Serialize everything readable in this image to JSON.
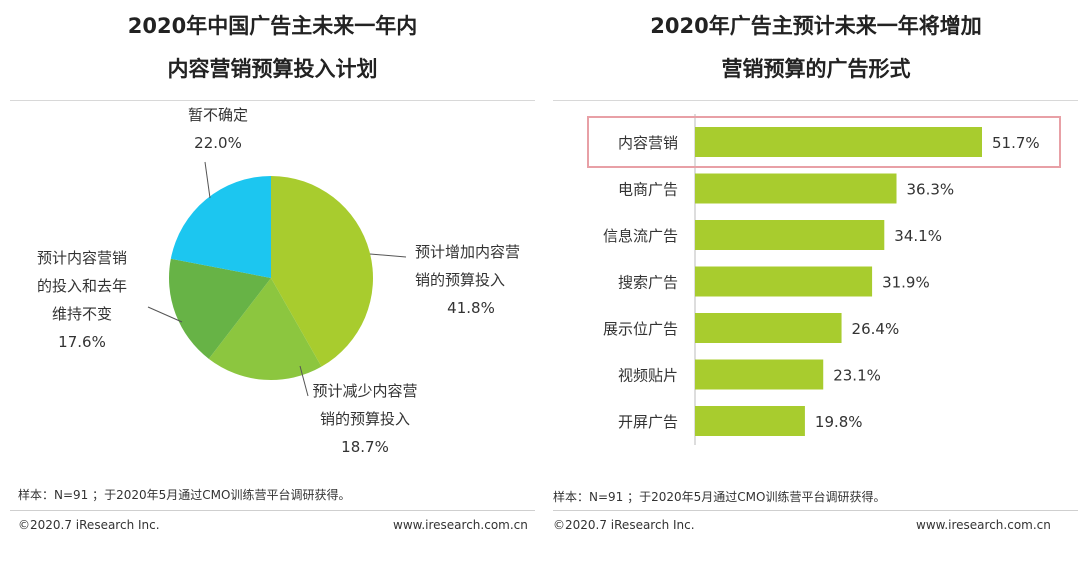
{
  "pie_chart": {
    "title_line1": "2020年中国广告主未来一年内",
    "title_line2": "内容营销预算投入计划"
  },
  "bar_chart": {
    "title_line1": "2020年广告主预计未来一年将增加",
    "title_line2": "营销预算的广告形式"
  },
  "chart_data": [
    {
      "type": "pie",
      "slices": [
        {
          "label_lines": [
            "预计增加内容营",
            "销的预算投入"
          ],
          "value": 41.8,
          "value_label": "41.8%",
          "color": "#a8cc2e"
        },
        {
          "label_lines": [
            "预计减少内容营",
            "销的预算投入"
          ],
          "value": 18.7,
          "value_label": "18.7%",
          "color": "#8cc63f"
        },
        {
          "label_lines": [
            "预计内容营销",
            "的投入和去年",
            "维持不变"
          ],
          "value": 17.6,
          "value_label": "17.6%",
          "color": "#67b346"
        },
        {
          "label_lines": [
            "暂不确定"
          ],
          "value": 22.0,
          "value_label": "22.0%",
          "color": "#1cc6f0"
        }
      ]
    },
    {
      "type": "bar",
      "orientation": "horizontal",
      "categories": [
        "内容营销",
        "电商广告",
        "信息流广告",
        "搜索广告",
        "展示位广告",
        "视频贴片",
        "开屏广告"
      ],
      "values": [
        51.7,
        36.3,
        34.1,
        31.9,
        26.4,
        23.1,
        19.8
      ],
      "value_labels": [
        "51.7%",
        "36.3%",
        "34.1%",
        "31.9%",
        "26.4%",
        "23.1%",
        "19.8%"
      ],
      "bar_color": "#a8cc2e",
      "highlight_category": "内容营销",
      "highlight_color": "#e8a0a6"
    }
  ],
  "footer": {
    "left_note": "样本：N=91 ；于2020年5月通过CMO训练营平台调研获得。",
    "right_note": "样本：N=91 ；于2020年5月通过CMO训练营平台调研获得。",
    "left_copyright": "©2020.7 iResearch Inc.",
    "left_url": "www.iresearch.com.cn",
    "right_copyright": "©2020.7 iResearch Inc.",
    "right_url": "www.iresearch.com.cn"
  }
}
